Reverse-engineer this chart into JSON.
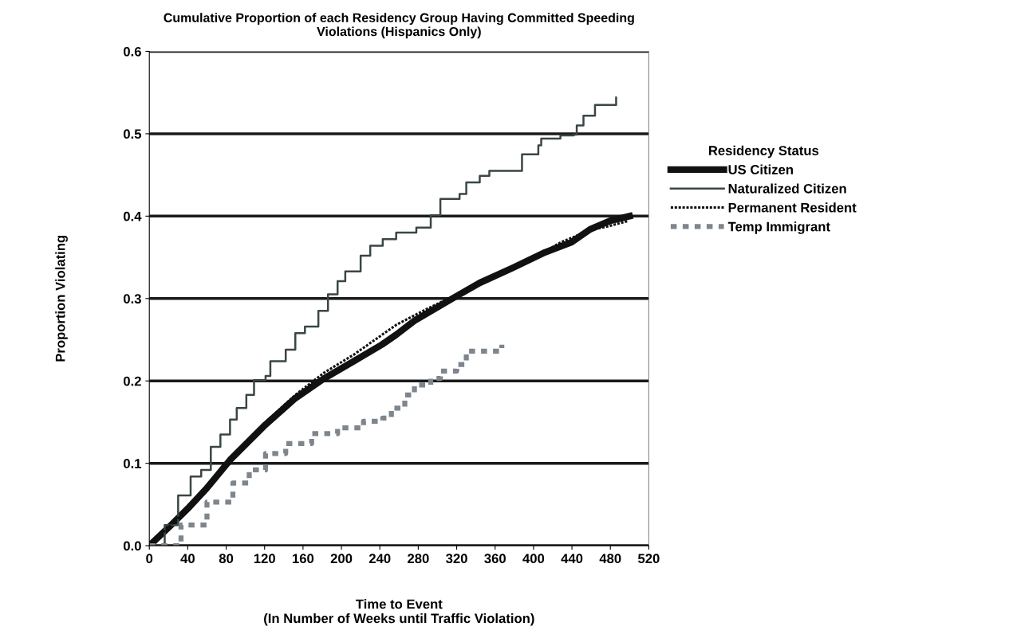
{
  "chart_data": {
    "type": "line",
    "title": "Cumulative Proportion of each Residency Group Having Committed Speeding\nViolations (Hispanics Only)",
    "xlabel": "Time to Event\n(In Number of Weeks until Traffic Violation)",
    "ylabel": "Proportion Violating",
    "legend_title": "Residency Status",
    "legend": "right",
    "grid": "y",
    "xlim": [
      0,
      520
    ],
    "xticks": [
      0,
      40,
      80,
      120,
      160,
      200,
      240,
      280,
      320,
      360,
      400,
      440,
      480,
      520
    ],
    "ylim": [
      0,
      0.6
    ],
    "yticks": [
      {
        "value": 0,
        "label": "0.0"
      },
      {
        "value": 0.1,
        "label": "0.1"
      },
      {
        "value": 0.2,
        "label": "0.2"
      },
      {
        "value": 0.3,
        "label": "0.3"
      },
      {
        "value": 0.4,
        "label": "0.4"
      },
      {
        "value": 0.5,
        "label": "0.5"
      },
      {
        "value": 0.6,
        "label": "0.6"
      }
    ],
    "series": [
      {
        "name": "US Citizen",
        "color": "#111111",
        "line_style": "solid",
        "x": [
          0,
          20,
          40,
          60,
          84,
          121,
          152,
          182,
          213,
          242,
          257,
          276,
          317,
          344,
          378,
          412,
          439,
          459,
          479,
          500
        ],
        "values": [
          0,
          0.022,
          0.045,
          0.07,
          0.104,
          0.147,
          0.179,
          0.203,
          0.224,
          0.244,
          0.256,
          0.273,
          0.301,
          0.319,
          0.337,
          0.356,
          0.368,
          0.384,
          0.394,
          0.4
        ]
      },
      {
        "name": "Naturalized Citizen",
        "type": "step",
        "color": "#3a4646",
        "line_style": "solid",
        "x": [
          0,
          16,
          30,
          43,
          54,
          64,
          74,
          84,
          91,
          101,
          109,
          121,
          126,
          142,
          152,
          162,
          176,
          186,
          196,
          204,
          220,
          230,
          243,
          257,
          278,
          293,
          303,
          323,
          330,
          344,
          354,
          378,
          388,
          405,
          408,
          428,
          442,
          445,
          452,
          464,
          486
        ],
        "values": [
          0,
          0.025,
          0.061,
          0.084,
          0.092,
          0.12,
          0.135,
          0.153,
          0.167,
          0.183,
          0.201,
          0.206,
          0.224,
          0.238,
          0.258,
          0.266,
          0.285,
          0.305,
          0.321,
          0.333,
          0.352,
          0.364,
          0.372,
          0.38,
          0.386,
          0.401,
          0.421,
          0.427,
          0.441,
          0.449,
          0.455,
          0.455,
          0.475,
          0.486,
          0.494,
          0.498,
          0.499,
          0.51,
          0.522,
          0.535,
          0.544
        ]
      },
      {
        "name": "Permanent Resident",
        "color": "#111111",
        "line_style": "dotted",
        "x": [
          0,
          40,
          84,
          121,
          152,
          182,
          213,
          257,
          290,
          317,
          344,
          378,
          412,
          428,
          459,
          479,
          498
        ],
        "values": [
          0,
          0.045,
          0.104,
          0.15,
          0.183,
          0.21,
          0.232,
          0.268,
          0.288,
          0.303,
          0.32,
          0.338,
          0.357,
          0.368,
          0.383,
          0.388,
          0.394
        ]
      },
      {
        "name": "Temp Immigrant",
        "type": "step",
        "color": "#7e858c",
        "line_style": "dashed",
        "x": [
          0,
          33,
          60,
          87,
          104,
          121,
          142,
          169,
          196,
          223,
          243,
          252,
          266,
          276,
          293,
          303,
          320,
          330,
          354,
          367
        ],
        "values": [
          0,
          0.025,
          0.053,
          0.076,
          0.092,
          0.112,
          0.124,
          0.136,
          0.143,
          0.151,
          0.155,
          0.167,
          0.183,
          0.195,
          0.203,
          0.212,
          0.22,
          0.236,
          0.236,
          0.244
        ]
      }
    ]
  }
}
